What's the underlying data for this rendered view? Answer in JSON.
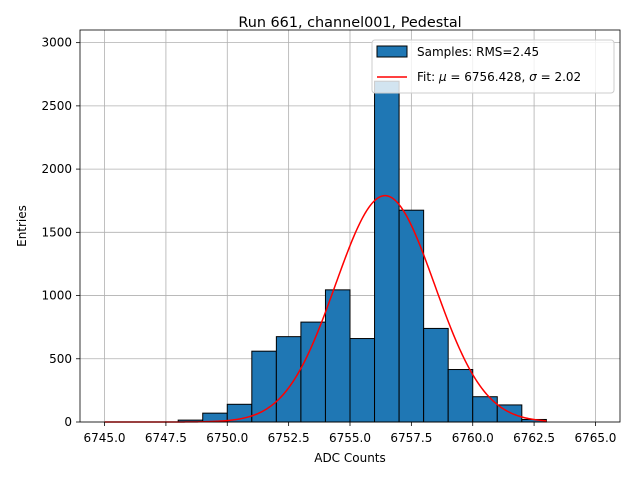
{
  "chart_data": {
    "type": "bar",
    "title": "Run 661, channel001, Pedestal",
    "xlabel": "ADC Counts",
    "ylabel": "Entries",
    "xlim": [
      6744.0,
      6766.0
    ],
    "ylim": [
      0,
      3100
    ],
    "xticks": [
      "6745.0",
      "6747.5",
      "6750.0",
      "6752.5",
      "6755.0",
      "6757.5",
      "6760.0",
      "6762.5",
      "6765.0"
    ],
    "xtick_values": [
      6745.0,
      6747.5,
      6750.0,
      6752.5,
      6755.0,
      6757.5,
      6760.0,
      6762.5,
      6765.0
    ],
    "yticks": [
      "0",
      "500",
      "1000",
      "1500",
      "2000",
      "2500",
      "3000"
    ],
    "ytick_values": [
      0,
      500,
      1000,
      1500,
      2000,
      2500,
      3000
    ],
    "grid": true,
    "legend_position": "top-right",
    "histogram": {
      "name": "Samples: RMS=2.45",
      "color": "#1f77b4",
      "edge_color": "#000000",
      "bins": [
        {
          "x0": 6745,
          "x1": 6746,
          "value": 0
        },
        {
          "x0": 6746,
          "x1": 6747,
          "value": 0
        },
        {
          "x0": 6747,
          "x1": 6748,
          "value": 0
        },
        {
          "x0": 6748,
          "x1": 6749,
          "value": 15
        },
        {
          "x0": 6749,
          "x1": 6750,
          "value": 70
        },
        {
          "x0": 6750,
          "x1": 6751,
          "value": 140
        },
        {
          "x0": 6751,
          "x1": 6752,
          "value": 560
        },
        {
          "x0": 6752,
          "x1": 6753,
          "value": 675
        },
        {
          "x0": 6753,
          "x1": 6754,
          "value": 790
        },
        {
          "x0": 6754,
          "x1": 6755,
          "value": 1045
        },
        {
          "x0": 6755,
          "x1": 6756,
          "value": 660
        },
        {
          "x0": 6756,
          "x1": 6757,
          "value": 2695
        },
        {
          "x0": 6757,
          "x1": 6758,
          "value": 1675
        },
        {
          "x0": 6758,
          "x1": 6759,
          "value": 740
        },
        {
          "x0": 6759,
          "x1": 6760,
          "value": 415
        },
        {
          "x0": 6760,
          "x1": 6761,
          "value": 200
        },
        {
          "x0": 6761,
          "x1": 6762,
          "value": 135
        },
        {
          "x0": 6762,
          "x1": 6763,
          "value": 20
        }
      ]
    },
    "fit": {
      "name_prefix": "Fit: ",
      "mu_symbol": "μ",
      "mu_text": " = 6756.428, ",
      "sigma_symbol": "σ",
      "sigma_text": " = 2.02",
      "color": "#ff0000",
      "mu": 6756.428,
      "sigma": 2.02,
      "peak": 1790,
      "x_range": [
        6745.0,
        6763.0
      ]
    }
  }
}
